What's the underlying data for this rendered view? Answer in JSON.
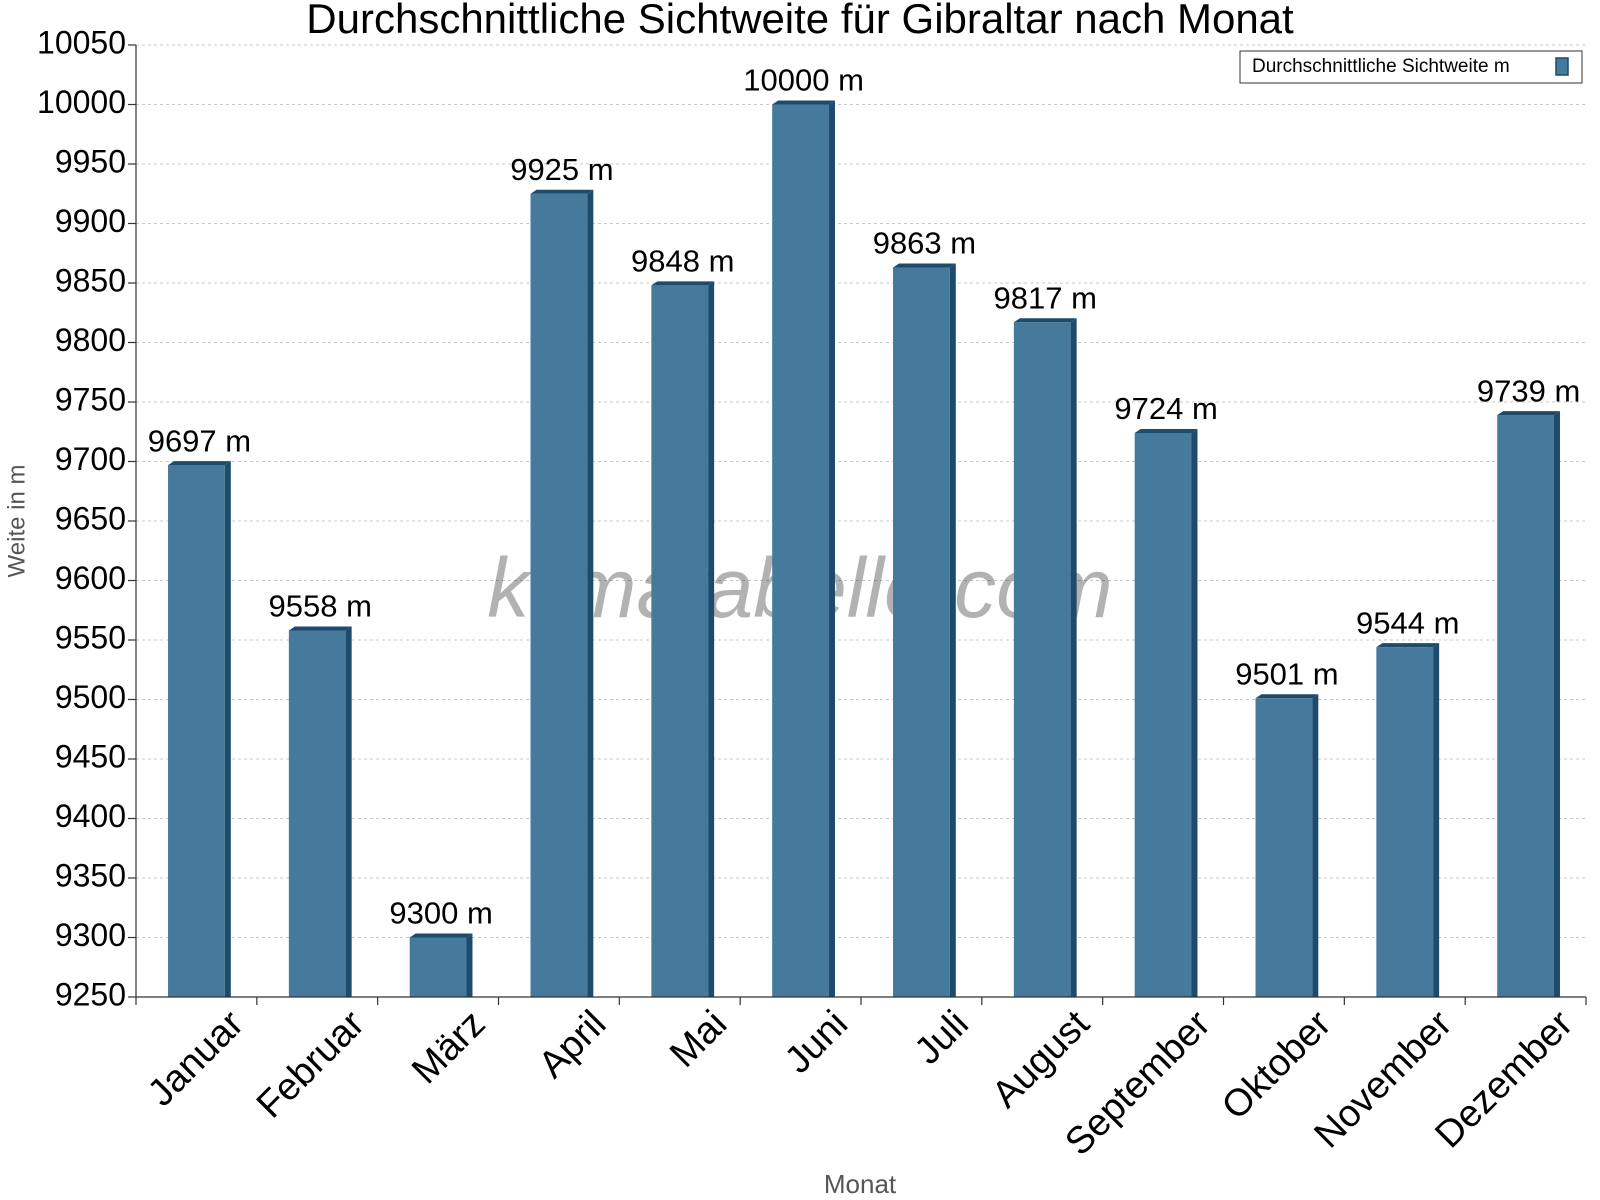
{
  "chart_data": {
    "type": "bar",
    "title": "Durchschnittliche Sichtweite für Gibraltar nach Monat",
    "x_label": "Monat",
    "y_label": "Weite in m",
    "watermark": "klimatabelle.com",
    "categories": [
      "Januar",
      "Februar",
      "März",
      "April",
      "Mai",
      "Juni",
      "Juli",
      "August",
      "September",
      "Oktober",
      "November",
      "Dezember"
    ],
    "series": [
      {
        "name": "Durchschnittliche Sichtweite m",
        "color": "#467a9c",
        "values": [
          9697,
          9558,
          9300,
          9925,
          9848,
          10000,
          9863,
          9817,
          9724,
          9501,
          9544,
          9739
        ],
        "value_labels": [
          "9697 m",
          "9558 m",
          "9300 m",
          "9925 m",
          "9848 m",
          "10000 m",
          "9863 m",
          "9817 m",
          "9724 m",
          "9501 m",
          "9544 m",
          "9739 m"
        ]
      }
    ],
    "ylim": [
      9250,
      10050
    ],
    "yticks": [
      9250,
      9300,
      9350,
      9400,
      9450,
      9500,
      9550,
      9600,
      9650,
      9700,
      9750,
      9800,
      9850,
      9900,
      9950,
      10000,
      10050
    ],
    "grid": true,
    "legend": "top-right"
  }
}
